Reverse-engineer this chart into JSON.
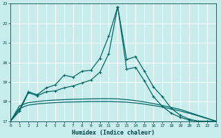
{
  "xlabel": "Humidex (Indice chaleur)",
  "background_color": "#c8ecec",
  "grid_color": "#ffffff",
  "line_color": "#006666",
  "xlim": [
    0,
    23
  ],
  "ylim": [
    17,
    23
  ],
  "yticks": [
    17,
    18,
    19,
    20,
    21,
    22,
    23
  ],
  "xticks": [
    0,
    1,
    2,
    3,
    4,
    5,
    6,
    7,
    8,
    9,
    10,
    11,
    12,
    13,
    14,
    15,
    16,
    17,
    18,
    19,
    20,
    21,
    22,
    23
  ],
  "curve1_x": [
    0,
    1,
    2,
    3,
    4,
    5,
    6,
    7,
    8,
    9,
    10,
    11,
    12,
    13,
    14,
    15,
    16,
    17,
    18,
    19,
    20,
    21,
    22,
    23
  ],
  "curve1_y": [
    17.0,
    17.6,
    18.5,
    18.35,
    18.7,
    18.85,
    19.35,
    19.25,
    19.55,
    19.6,
    20.2,
    21.35,
    22.85,
    20.15,
    20.3,
    19.55,
    18.75,
    18.25,
    17.65,
    17.3,
    17.1,
    17.0,
    17.0,
    17.0
  ],
  "curve2_x": [
    0,
    1,
    2,
    3,
    4,
    5,
    6,
    7,
    8,
    9,
    10,
    11,
    12,
    13,
    14,
    15,
    16,
    17,
    18,
    19,
    20,
    21,
    22,
    23
  ],
  "curve2_y": [
    17.0,
    17.5,
    18.45,
    18.3,
    18.5,
    18.55,
    18.7,
    18.8,
    18.95,
    19.1,
    19.5,
    20.45,
    22.85,
    19.65,
    19.75,
    19.05,
    18.25,
    17.75,
    17.4,
    17.2,
    17.05,
    17.0,
    17.0,
    17.0
  ],
  "curve3_x": [
    0,
    1,
    2,
    3,
    4,
    5,
    6,
    7,
    8,
    9,
    10,
    11,
    12,
    13,
    14,
    15,
    16,
    17,
    18,
    19,
    20,
    21,
    22,
    23
  ],
  "curve3_y": [
    17.0,
    17.78,
    17.95,
    18.0,
    18.05,
    18.08,
    18.1,
    18.12,
    18.13,
    18.14,
    18.15,
    18.15,
    18.14,
    18.1,
    18.05,
    17.98,
    17.9,
    17.8,
    17.7,
    17.6,
    17.45,
    17.3,
    17.15,
    17.0
  ],
  "curve4_x": [
    0,
    1,
    2,
    3,
    4,
    5,
    6,
    7,
    8,
    9,
    10,
    11,
    12,
    13,
    14,
    15,
    16,
    17,
    18,
    19,
    20,
    21,
    22,
    23
  ],
  "curve4_y": [
    17.0,
    17.65,
    17.82,
    17.88,
    17.92,
    17.95,
    17.97,
    17.98,
    17.99,
    18.0,
    18.0,
    18.0,
    17.99,
    17.97,
    17.93,
    17.87,
    17.8,
    17.72,
    17.62,
    17.52,
    17.4,
    17.27,
    17.13,
    17.0
  ]
}
